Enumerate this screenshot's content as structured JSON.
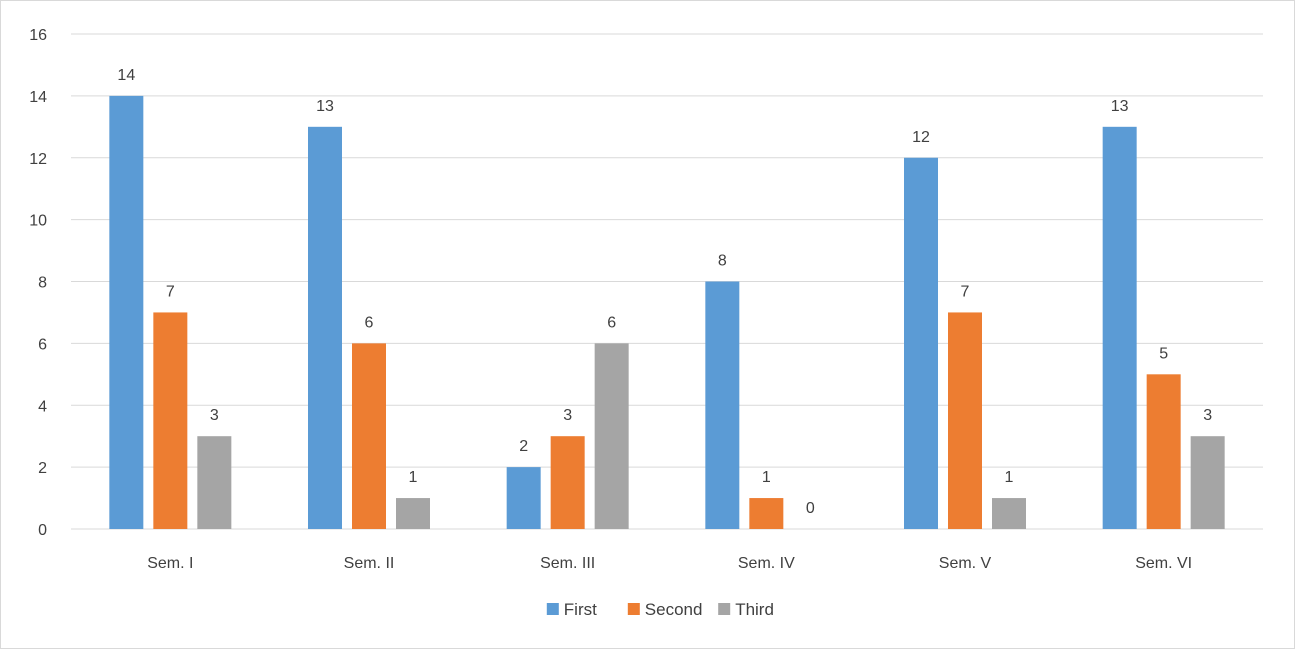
{
  "chart_data": {
    "type": "bar",
    "categories": [
      "Sem. I",
      "Sem. II",
      "Sem. III",
      "Sem. IV",
      "Sem. V",
      "Sem. VI"
    ],
    "series": [
      {
        "name": "First",
        "color": "#5b9bd5",
        "values": [
          14,
          13,
          2,
          8,
          12,
          13
        ]
      },
      {
        "name": "Second",
        "color": "#ed7d31",
        "values": [
          7,
          6,
          3,
          1,
          7,
          5
        ]
      },
      {
        "name": "Third",
        "color": "#a5a5a5",
        "values": [
          3,
          1,
          6,
          0,
          1,
          3
        ]
      }
    ],
    "yticks": [
      "0",
      "2",
      "4",
      "6",
      "8",
      "10",
      "12",
      "14",
      "16"
    ],
    "ylim": [
      0,
      16
    ],
    "grid": true,
    "legend_position": "bottom",
    "data_labels": true
  }
}
